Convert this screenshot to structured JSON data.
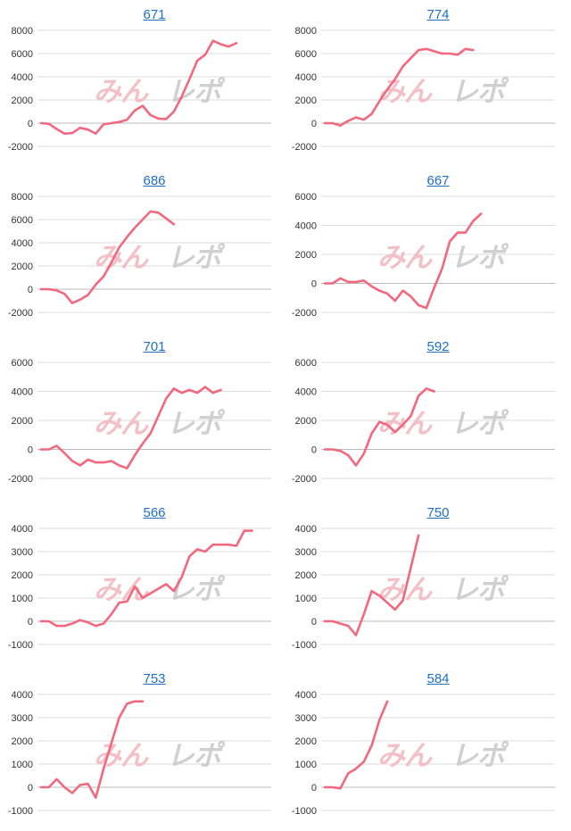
{
  "colors": {
    "line": "#f2687e",
    "grid": "#dddddd",
    "zero_line": "#bbbbbb",
    "title_link": "#1f6fc5",
    "watermark_pink": "#f0b6bd",
    "watermark_gray": "#c8c8c8"
  },
  "watermark": {
    "left": "みん",
    "right": "レポ"
  },
  "chart_data": [
    {
      "type": "line",
      "title": "671",
      "y_ticks": [
        "8000",
        "6000",
        "4000",
        "2000",
        "0",
        "-2000"
      ],
      "ylim": [
        -2000,
        8000
      ],
      "values": [
        0,
        -50,
        -500,
        -900,
        -850,
        -400,
        -550,
        -900,
        -100,
        0,
        100,
        300,
        1100,
        1500,
        700,
        400,
        350,
        1000,
        2300,
        3800,
        5400,
        5900,
        7100,
        6800,
        6600,
        6900
      ]
    },
    {
      "type": "line",
      "title": "774",
      "y_ticks": [
        "8000",
        "6000",
        "4000",
        "2000",
        "0",
        "-2000"
      ],
      "ylim": [
        -2000,
        8000
      ],
      "values": [
        0,
        0,
        -200,
        200,
        500,
        300,
        800,
        1900,
        2900,
        3800,
        4900,
        5600,
        6300,
        6400,
        6200,
        6000,
        6000,
        5900,
        6400,
        6300
      ]
    },
    {
      "type": "line",
      "title": "686",
      "y_ticks": [
        "8000",
        "6000",
        "4000",
        "2000",
        "0",
        "-2000"
      ],
      "ylim": [
        -2000,
        8000
      ],
      "values": [
        0,
        0,
        -100,
        -400,
        -1200,
        -900,
        -500,
        400,
        1100,
        2300,
        3600,
        4500,
        5300,
        6000,
        6700,
        6600,
        6100,
        5600
      ]
    },
    {
      "type": "line",
      "title": "667",
      "y_ticks": [
        "6000",
        "4000",
        "2000",
        "0",
        "-2000"
      ],
      "ylim": [
        -2000,
        6000
      ],
      "values": [
        0,
        0,
        350,
        100,
        100,
        200,
        -200,
        -500,
        -700,
        -1200,
        -500,
        -900,
        -1500,
        -1700,
        -300,
        1000,
        2900,
        3500,
        3500,
        4300,
        4800
      ]
    },
    {
      "type": "line",
      "title": "701",
      "y_ticks": [
        "6000",
        "4000",
        "2000",
        "0",
        "-2000"
      ],
      "ylim": [
        -2000,
        6000
      ],
      "values": [
        0,
        0,
        250,
        -250,
        -800,
        -1100,
        -700,
        -900,
        -900,
        -800,
        -1100,
        -1300,
        -400,
        400,
        1100,
        2300,
        3500,
        4200,
        3900,
        4100,
        3900,
        4300,
        3900,
        4100
      ]
    },
    {
      "type": "line",
      "title": "592",
      "y_ticks": [
        "6000",
        "4000",
        "2000",
        "0",
        "-2000"
      ],
      "ylim": [
        -2000,
        6000
      ],
      "values": [
        0,
        0,
        -100,
        -400,
        -1100,
        -300,
        1100,
        1900,
        1700,
        1200,
        1700,
        2300,
        3700,
        4200,
        4000
      ]
    },
    {
      "type": "line",
      "title": "566",
      "y_ticks": [
        "4000",
        "3000",
        "2000",
        "1000",
        "0",
        "-1000"
      ],
      "ylim": [
        -1000,
        4000
      ],
      "values": [
        0,
        0,
        -200,
        -200,
        -100,
        50,
        -50,
        -200,
        -100,
        300,
        800,
        850,
        1500,
        1000,
        1200,
        1400,
        1600,
        1300,
        1900,
        2800,
        3100,
        3000,
        3300,
        3300,
        3300,
        3250,
        3900,
        3900
      ]
    },
    {
      "type": "line",
      "title": "750",
      "y_ticks": [
        "4000",
        "3000",
        "2000",
        "1000",
        "0",
        "-1000"
      ],
      "ylim": [
        -1000,
        4000
      ],
      "values": [
        0,
        0,
        -100,
        -200,
        -600,
        300,
        1300,
        1100,
        800,
        500,
        900,
        2300,
        3700
      ]
    },
    {
      "type": "line",
      "title": "753",
      "y_ticks": [
        "4000",
        "3000",
        "2000",
        "1000",
        "0",
        "-1000"
      ],
      "ylim": [
        -1000,
        4000
      ],
      "values": [
        0,
        0,
        350,
        0,
        -250,
        100,
        150,
        -450,
        800,
        1900,
        3000,
        3600,
        3700,
        3700
      ]
    },
    {
      "type": "line",
      "title": "584",
      "y_ticks": [
        "4000",
        "3000",
        "2000",
        "1000",
        "0",
        "-1000"
      ],
      "ylim": [
        -1000,
        4000
      ],
      "values": [
        0,
        0,
        -50,
        600,
        800,
        1100,
        1800,
        2900,
        3700
      ]
    }
  ]
}
